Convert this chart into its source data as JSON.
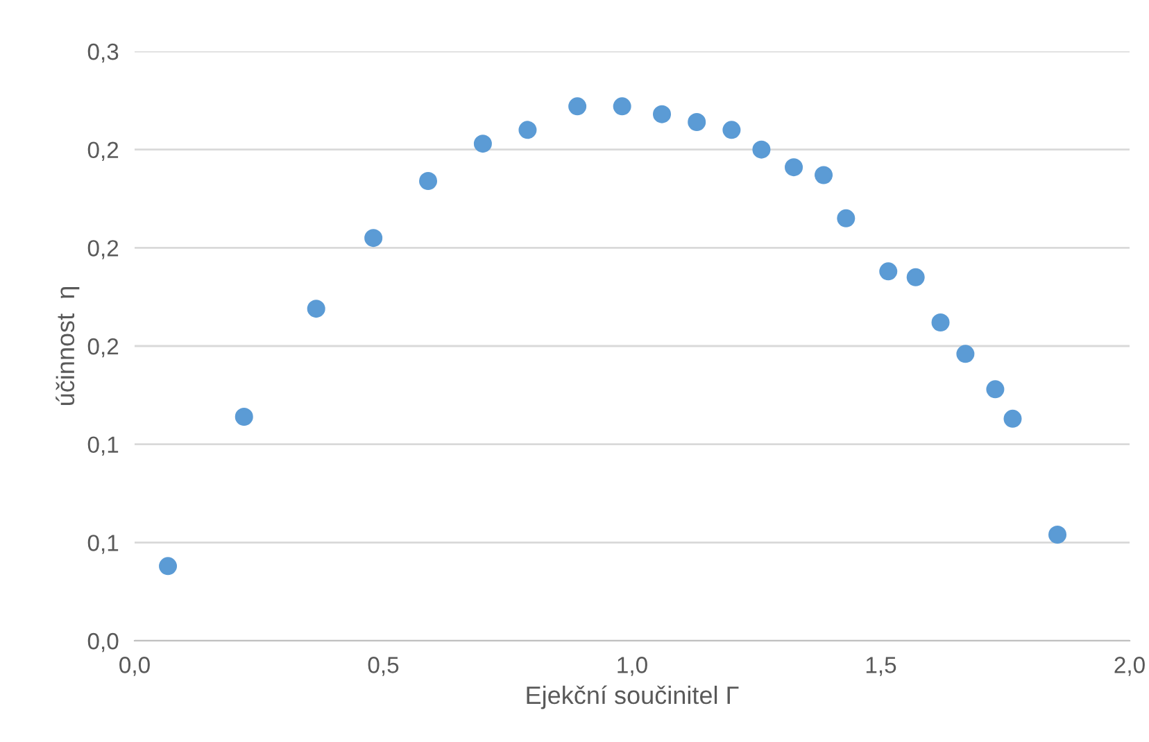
{
  "chart_data": {
    "type": "scatter",
    "xlabel": "Ejekční součinitel Γ",
    "ylabel": "účinnost  η",
    "x": [
      0.067,
      0.22,
      0.365,
      0.48,
      0.59,
      0.7,
      0.79,
      0.89,
      0.98,
      1.06,
      1.13,
      1.2,
      1.26,
      1.325,
      1.385,
      1.43,
      1.515,
      1.57,
      1.62,
      1.67,
      1.73,
      1.765,
      1.855
    ],
    "series": [
      {
        "color": "#5b9bd5",
        "values": [
          0.038,
          0.114,
          0.169,
          0.205,
          0.234,
          0.253,
          0.26,
          0.272,
          0.272,
          0.268,
          0.264,
          0.26,
          0.25,
          0.241,
          0.237,
          0.215,
          0.188,
          0.185,
          0.162,
          0.146,
          0.128,
          0.113,
          0.054
        ]
      }
    ],
    "xlim": [
      0,
      2.0
    ],
    "xticks": [
      {
        "value": 0,
        "label": "0,0"
      },
      {
        "value": 0.5,
        "label": "0,5"
      },
      {
        "value": 1.0,
        "label": "1,0"
      },
      {
        "value": 1.5,
        "label": "1,5"
      },
      {
        "value": 2.0,
        "label": "2,0"
      }
    ],
    "ylim": [
      0,
      0.3
    ],
    "yticks": [
      {
        "value": 0,
        "label": "0,0"
      },
      {
        "value": 0.05,
        "label": "0,1"
      },
      {
        "value": 0.1,
        "label": "0,1"
      },
      {
        "value": 0.15,
        "label": "0,2"
      },
      {
        "value": 0.2,
        "label": "0,2"
      },
      {
        "value": 0.25,
        "label": "0,2"
      },
      {
        "value": 0.3,
        "label": "0,3"
      }
    ],
    "grid": "y",
    "marker": "circle",
    "legend": false
  }
}
